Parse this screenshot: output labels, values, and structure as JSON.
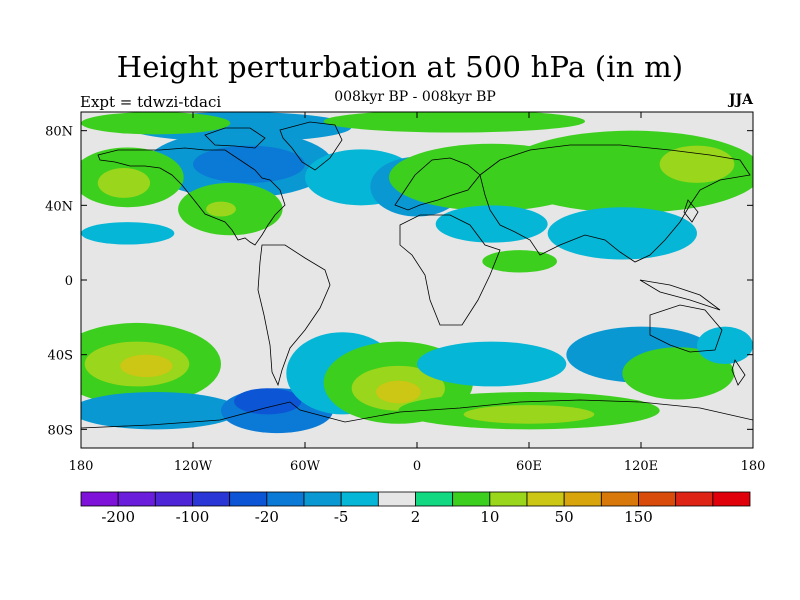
{
  "title": "Height perturbation at 500 hPa (in m)",
  "subtitle": "008kyr BP - 008kyr BP",
  "experiment": "Expt = tdwzi-tdaci",
  "season": "JJA",
  "map": {
    "projection": "equirectangular",
    "lon_range": [
      -180,
      180
    ],
    "lat_range": [
      -90,
      90
    ],
    "lat_ticks": [
      {
        "value": 80,
        "label": "80N"
      },
      {
        "value": 40,
        "label": "40N"
      },
      {
        "value": 0,
        "label": "0"
      },
      {
        "value": -40,
        "label": "40S"
      },
      {
        "value": -80,
        "label": "80S"
      }
    ],
    "lon_ticks": [
      {
        "value": -180,
        "label": "180"
      },
      {
        "value": -120,
        "label": "120W"
      },
      {
        "value": -60,
        "label": "60W"
      },
      {
        "value": 0,
        "label": "0"
      },
      {
        "value": 60,
        "label": "60E"
      },
      {
        "value": 120,
        "label": "120E"
      },
      {
        "value": 180,
        "label": "180"
      }
    ],
    "background_color": "#e6e6e6",
    "coastline_color": "#000000"
  },
  "colorbar": {
    "colors": [
      "#7f12d9",
      "#6a1ddb",
      "#4f25d8",
      "#2b36d6",
      "#0c55d4",
      "#0b7ad6",
      "#0a98d3",
      "#06b6d6",
      "#e6e6e6",
      "#12d882",
      "#3dcf1e",
      "#9ad61b",
      "#ccc614",
      "#d8a60c",
      "#d9780a",
      "#d94b0a",
      "#de2414",
      "#e0000b"
    ],
    "labels": [
      {
        "boundary": 1,
        "text": "-200"
      },
      {
        "boundary": 3,
        "text": "-100"
      },
      {
        "boundary": 5,
        "text": "-20"
      },
      {
        "boundary": 7,
        "text": "-5"
      },
      {
        "boundary": 9,
        "text": "2"
      },
      {
        "boundary": 11,
        "text": "10"
      },
      {
        "boundary": 13,
        "text": "50"
      },
      {
        "boundary": 15,
        "text": "150"
      }
    ]
  },
  "field_blobs": [
    {
      "lon": -95,
      "lat": 82,
      "rlon": 60,
      "rlat": 8,
      "level": 6
    },
    {
      "lon": -140,
      "lat": 84,
      "rlon": 40,
      "rlat": 6,
      "level": 10
    },
    {
      "lon": 20,
      "lat": 85,
      "rlon": 70,
      "rlat": 6,
      "level": 10
    },
    {
      "lon": -95,
      "lat": 62,
      "rlon": 50,
      "rlat": 18,
      "level": 6
    },
    {
      "lon": -90,
      "lat": 62,
      "rlon": 30,
      "rlat": 10,
      "level": 5
    },
    {
      "lon": -155,
      "lat": 55,
      "rlon": 30,
      "rlat": 16,
      "level": 10
    },
    {
      "lon": -157,
      "lat": 52,
      "rlon": 14,
      "rlat": 8,
      "level": 11
    },
    {
      "lon": -100,
      "lat": 38,
      "rlon": 28,
      "rlat": 14,
      "level": 10
    },
    {
      "lon": -105,
      "lat": 38,
      "rlon": 8,
      "rlat": 4,
      "level": 11
    },
    {
      "lon": -155,
      "lat": 25,
      "rlon": 25,
      "rlat": 6,
      "level": 7
    },
    {
      "lon": -30,
      "lat": 55,
      "rlon": 30,
      "rlat": 15,
      "level": 7
    },
    {
      "lon": 0,
      "lat": 50,
      "rlon": 25,
      "rlat": 16,
      "level": 6
    },
    {
      "lon": 5,
      "lat": 58,
      "rlon": 15,
      "rlat": 8,
      "level": 5
    },
    {
      "lon": 40,
      "lat": 55,
      "rlon": 55,
      "rlat": 18,
      "level": 10
    },
    {
      "lon": 115,
      "lat": 58,
      "rlon": 70,
      "rlat": 22,
      "level": 10
    },
    {
      "lon": 150,
      "lat": 62,
      "rlon": 20,
      "rlat": 10,
      "level": 11
    },
    {
      "lon": 40,
      "lat": 30,
      "rlon": 30,
      "rlat": 10,
      "level": 7
    },
    {
      "lon": 110,
      "lat": 25,
      "rlon": 40,
      "rlat": 14,
      "level": 7
    },
    {
      "lon": 55,
      "lat": 10,
      "rlon": 20,
      "rlat": 6,
      "level": 10
    },
    {
      "lon": -150,
      "lat": -45,
      "rlon": 45,
      "rlat": 22,
      "level": 10
    },
    {
      "lon": -150,
      "lat": -45,
      "rlon": 28,
      "rlat": 12,
      "level": 11
    },
    {
      "lon": -145,
      "lat": -46,
      "rlon": 14,
      "rlat": 6,
      "level": 12
    },
    {
      "lon": -140,
      "lat": -70,
      "rlon": 45,
      "rlat": 10,
      "level": 6
    },
    {
      "lon": -75,
      "lat": -70,
      "rlon": 30,
      "rlat": 12,
      "level": 5
    },
    {
      "lon": -80,
      "lat": -65,
      "rlon": 18,
      "rlat": 7,
      "level": 4
    },
    {
      "lon": -40,
      "lat": -50,
      "rlon": 30,
      "rlat": 22,
      "level": 7
    },
    {
      "lon": -10,
      "lat": -55,
      "rlon": 40,
      "rlat": 22,
      "level": 10
    },
    {
      "lon": -10,
      "lat": -58,
      "rlon": 25,
      "rlat": 12,
      "level": 11
    },
    {
      "lon": -10,
      "lat": -60,
      "rlon": 12,
      "rlat": 6,
      "level": 12
    },
    {
      "lon": 40,
      "lat": -45,
      "rlon": 40,
      "rlat": 12,
      "level": 7
    },
    {
      "lon": 60,
      "lat": -70,
      "rlon": 70,
      "rlat": 10,
      "level": 10
    },
    {
      "lon": 60,
      "lat": -72,
      "rlon": 35,
      "rlat": 5,
      "level": 11
    },
    {
      "lon": 120,
      "lat": -40,
      "rlon": 40,
      "rlat": 15,
      "level": 6
    },
    {
      "lon": 140,
      "lat": -50,
      "rlon": 30,
      "rlat": 14,
      "level": 10
    },
    {
      "lon": 165,
      "lat": -35,
      "rlon": 15,
      "rlat": 10,
      "level": 7
    }
  ]
}
